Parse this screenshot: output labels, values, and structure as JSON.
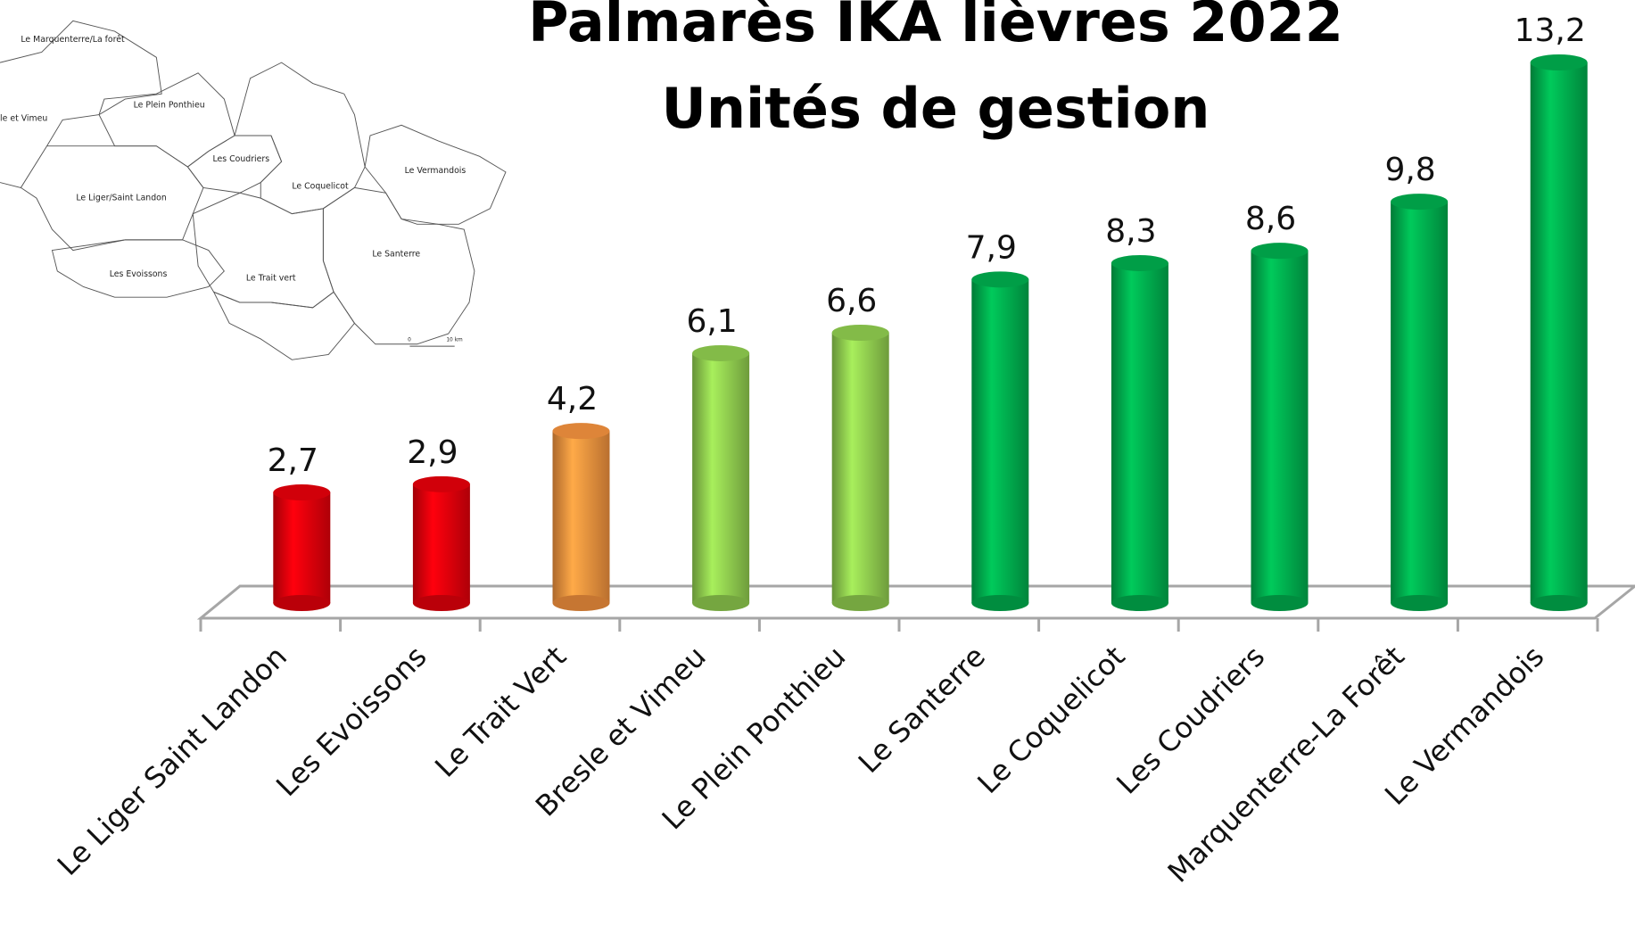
{
  "chart_data": {
    "type": "bar",
    "title": [
      "Palmarès IKA lièvres 2022",
      "Unités de gestion"
    ],
    "categories": [
      "Le Liger Saint Landon",
      "Les Evoissons",
      "Le Trait Vert",
      "Bresle et Vimeu",
      "Le Plein Ponthieu",
      "Le Santerre",
      "Le Coquelicot",
      "Les Coudriers",
      "Marquenterre-La Forêt",
      "Le Vermandois"
    ],
    "values": [
      2.7,
      2.9,
      4.2,
      6.1,
      6.6,
      7.9,
      8.3,
      8.6,
      9.8,
      13.2
    ],
    "value_labels": [
      "2,7",
      "2,9",
      "4,2",
      "6,1",
      "6,6",
      "7,9",
      "8,3",
      "8,6",
      "9,8",
      "13,2"
    ],
    "colors": [
      "#e8000b",
      "#e8000b",
      "#f7943f",
      "#92d050",
      "#92d050",
      "#00b04f",
      "#00b04f",
      "#00b04f",
      "#00b04f",
      "#00b04f"
    ]
  },
  "map": {
    "labels": [
      "Le Marquenterre/La forêt",
      "Le Plein Ponthieu",
      "le et Vimeu",
      "Les Coudriers",
      "Le Coquelicot",
      "Le Vermandois",
      "Le Liger/Saint Landon",
      "Le Santerre",
      "Les Evoissons",
      "Le Trait vert"
    ],
    "scale": [
      "0",
      "10 km"
    ]
  }
}
